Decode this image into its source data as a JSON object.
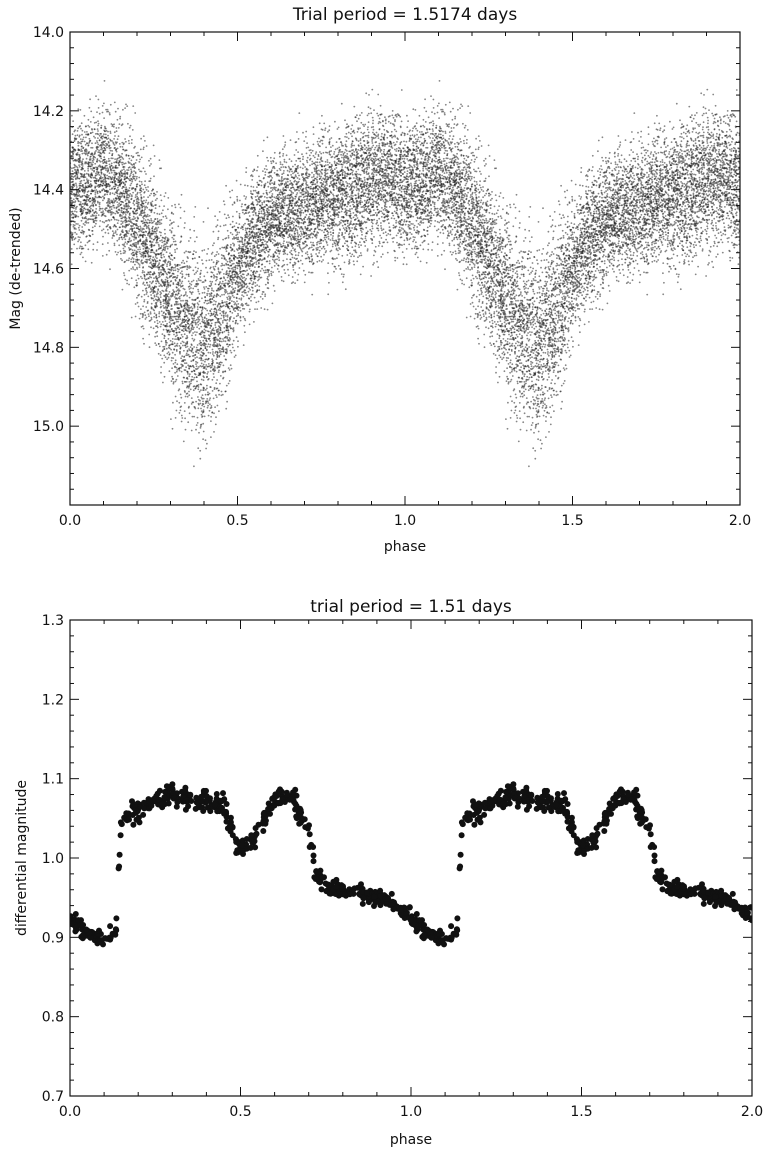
{
  "chart_data": [
    {
      "type": "scatter",
      "title": "Trial period = 1.5174 days",
      "xlabel": "phase",
      "ylabel": "Mag (de-trended)",
      "xlim": [
        0.0,
        2.0
      ],
      "ylim": [
        14.0,
        15.2
      ],
      "y_inverted": true,
      "xticks": [
        0.0,
        0.5,
        1.0,
        1.5,
        2.0
      ],
      "xtick_labels": [
        "0.0",
        "0.5",
        "1.0",
        "1.5",
        "2.0"
      ],
      "yticks": [
        14.0,
        14.2,
        14.4,
        14.6,
        14.8,
        15.0
      ],
      "ytick_labels": [
        "14.0",
        "14.2",
        "14.4",
        "14.6",
        "14.8",
        "15.0"
      ],
      "grid": false,
      "marker_color": "#222222",
      "marker": "small-dot",
      "phase_curve": {
        "phase": [
          0.0,
          0.05,
          0.1,
          0.15,
          0.2,
          0.25,
          0.3,
          0.35,
          0.4,
          0.45,
          0.5,
          0.55,
          0.6,
          0.65,
          0.7,
          0.75,
          0.8,
          0.85,
          0.9,
          0.95,
          1.0
        ],
        "mag": [
          14.4,
          14.38,
          14.36,
          14.4,
          14.48,
          14.58,
          14.68,
          14.76,
          14.8,
          14.72,
          14.6,
          14.52,
          14.48,
          14.46,
          14.45,
          14.43,
          14.42,
          14.4,
          14.38,
          14.37,
          14.4
        ],
        "scatter": [
          0.14,
          0.14,
          0.14,
          0.15,
          0.16,
          0.17,
          0.18,
          0.2,
          0.2,
          0.18,
          0.15,
          0.13,
          0.13,
          0.13,
          0.13,
          0.13,
          0.14,
          0.14,
          0.14,
          0.14,
          0.14
        ]
      }
    },
    {
      "type": "scatter",
      "title": "trial period = 1.51 days",
      "xlabel": "phase",
      "ylabel": "differential magnitude",
      "xlim": [
        0.0,
        2.0
      ],
      "ylim": [
        0.7,
        1.3
      ],
      "y_inverted": false,
      "xticks": [
        0.0,
        0.5,
        1.0,
        1.5,
        2.0
      ],
      "xtick_labels": [
        "0.0",
        "0.5",
        "1.0",
        "1.5",
        "2.0"
      ],
      "yticks": [
        0.7,
        0.8,
        0.9,
        1.0,
        1.1,
        1.2,
        1.3
      ],
      "ytick_labels": [
        "0.7",
        "0.8",
        "0.9",
        "1.0",
        "1.1",
        "1.2",
        "1.3"
      ],
      "grid": false,
      "marker_color": "#111111",
      "marker": "filled-circle",
      "phase_curve": {
        "phase": [
          0.0,
          0.02,
          0.05,
          0.08,
          0.1,
          0.12,
          0.135,
          0.15,
          0.2,
          0.25,
          0.3,
          0.35,
          0.4,
          0.45,
          0.5,
          0.55,
          0.6,
          0.65,
          0.7,
          0.72,
          0.76,
          0.8,
          0.85,
          0.9,
          0.95,
          1.0
        ],
        "mag": [
          0.925,
          0.915,
          0.905,
          0.9,
          0.895,
          0.9,
          0.91,
          1.05,
          1.06,
          1.075,
          1.08,
          1.075,
          1.07,
          1.065,
          1.01,
          1.03,
          1.075,
          1.08,
          1.03,
          0.98,
          0.96,
          0.96,
          0.955,
          0.95,
          0.94,
          0.925
        ],
        "scatter": [
          0.009,
          0.009,
          0.009,
          0.009,
          0.009,
          0.009,
          0.009,
          0.01,
          0.012,
          0.012,
          0.012,
          0.012,
          0.012,
          0.012,
          0.01,
          0.012,
          0.012,
          0.012,
          0.015,
          0.012,
          0.009,
          0.009,
          0.009,
          0.009,
          0.009,
          0.009
        ]
      }
    }
  ]
}
